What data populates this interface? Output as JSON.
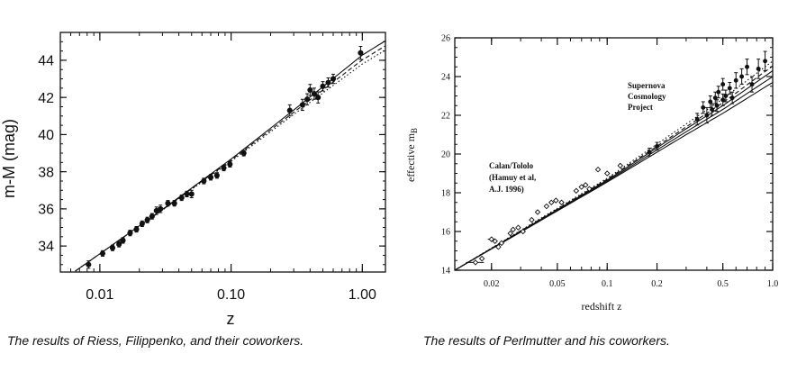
{
  "charts": {
    "riess": {
      "xlabel": "z",
      "ylabel": "m-M (mag)"
    },
    "perlmutter": {
      "xlabel": "redshift  z",
      "ylabel": "effective  m",
      "ylabel_sub": "B",
      "label_calan": [
        "Calan/Tololo",
        "(Hamuy et al,",
        "A.J. 1996)"
      ],
      "label_scp": [
        "Supernova",
        "Cosmology",
        "Project"
      ]
    }
  },
  "captions": {
    "riess": "The results of Riess, Filippenko, and their coworkers.",
    "perlmutter": "The results of Perlmutter and his coworkers."
  },
  "chart_data": [
    {
      "type": "scatter",
      "title": "",
      "xlabel": "z",
      "ylabel": "m-M (mag)",
      "xscale": "log",
      "xlim": [
        0.005,
        1.5
      ],
      "ylim": [
        32.6,
        45.5
      ],
      "xticks": [
        0.01,
        0.1,
        1.0
      ],
      "xtick_labels": [
        "0.01",
        "0.10",
        "1.00"
      ],
      "yticks": [
        34,
        36,
        38,
        40,
        42,
        44
      ],
      "ytick_labels": [
        "34",
        "36",
        "38",
        "40",
        "42",
        "44"
      ],
      "grid": false,
      "points": [
        {
          "x": 0.0082,
          "y": 33.0,
          "err": 0.2
        },
        {
          "x": 0.0105,
          "y": 33.6,
          "err": 0.15
        },
        {
          "x": 0.0125,
          "y": 33.9,
          "err": 0.15
        },
        {
          "x": 0.014,
          "y": 34.1,
          "err": 0.15
        },
        {
          "x": 0.015,
          "y": 34.3,
          "err": 0.15
        },
        {
          "x": 0.017,
          "y": 34.7,
          "err": 0.15
        },
        {
          "x": 0.019,
          "y": 34.9,
          "err": 0.15
        },
        {
          "x": 0.021,
          "y": 35.2,
          "err": 0.15
        },
        {
          "x": 0.023,
          "y": 35.4,
          "err": 0.15
        },
        {
          "x": 0.025,
          "y": 35.6,
          "err": 0.15
        },
        {
          "x": 0.027,
          "y": 35.9,
          "err": 0.2
        },
        {
          "x": 0.029,
          "y": 36.0,
          "err": 0.2
        },
        {
          "x": 0.033,
          "y": 36.3,
          "err": 0.15
        },
        {
          "x": 0.037,
          "y": 36.3,
          "err": 0.15
        },
        {
          "x": 0.042,
          "y": 36.6,
          "err": 0.15
        },
        {
          "x": 0.046,
          "y": 36.8,
          "err": 0.15
        },
        {
          "x": 0.05,
          "y": 36.8,
          "err": 0.2
        },
        {
          "x": 0.062,
          "y": 37.5,
          "err": 0.15
        },
        {
          "x": 0.07,
          "y": 37.7,
          "err": 0.15
        },
        {
          "x": 0.078,
          "y": 37.8,
          "err": 0.15
        },
        {
          "x": 0.088,
          "y": 38.2,
          "err": 0.15
        },
        {
          "x": 0.098,
          "y": 38.4,
          "err": 0.15
        },
        {
          "x": 0.125,
          "y": 39.0,
          "err": 0.15
        },
        {
          "x": 0.28,
          "y": 41.3,
          "err": 0.3
        },
        {
          "x": 0.35,
          "y": 41.6,
          "err": 0.3
        },
        {
          "x": 0.38,
          "y": 41.9,
          "err": 0.3
        },
        {
          "x": 0.4,
          "y": 42.4,
          "err": 0.3
        },
        {
          "x": 0.43,
          "y": 42.2,
          "err": 0.3
        },
        {
          "x": 0.46,
          "y": 42.0,
          "err": 0.3
        },
        {
          "x": 0.5,
          "y": 42.6,
          "err": 0.25
        },
        {
          "x": 0.55,
          "y": 42.8,
          "err": 0.25
        },
        {
          "x": 0.6,
          "y": 43.0,
          "err": 0.25
        },
        {
          "x": 0.97,
          "y": 44.4,
          "err": 0.35
        }
      ],
      "series": [
        {
          "style": "solid",
          "x": [
            0.0065,
            0.01,
            0.03,
            0.1,
            0.3,
            1.0,
            1.5
          ],
          "y": [
            32.65,
            33.58,
            35.97,
            38.68,
            41.32,
            44.28,
            45.05
          ]
        },
        {
          "style": "dashed",
          "x": [
            0.0065,
            0.01,
            0.03,
            0.1,
            0.3,
            1.0,
            1.5
          ],
          "y": [
            32.65,
            33.58,
            35.95,
            38.62,
            41.2,
            44.02,
            44.78
          ]
        },
        {
          "style": "dotted",
          "x": [
            0.0065,
            0.01,
            0.03,
            0.1,
            0.3,
            1.0,
            1.5
          ],
          "y": [
            32.65,
            33.58,
            35.93,
            38.56,
            41.08,
            43.8,
            44.55
          ]
        }
      ]
    },
    {
      "type": "scatter",
      "title": "",
      "xlabel": "redshift z",
      "ylabel": "effective m_B",
      "xscale": "log",
      "xlim": [
        0.012,
        1.0
      ],
      "ylim": [
        14,
        26
      ],
      "xticks": [
        0.02,
        0.05,
        0.1,
        0.2,
        0.5,
        1.0
      ],
      "xtick_labels": [
        "0.02",
        "0.05",
        "0.1",
        "0.2",
        "0.5",
        "1.0"
      ],
      "yticks": [
        14,
        16,
        18,
        20,
        22,
        24,
        26
      ],
      "ytick_labels": [
        "14",
        "16",
        "18",
        "20",
        "22",
        "24",
        "26"
      ],
      "grid": false,
      "points_calan": [
        {
          "x": 0.016,
          "y": 14.4,
          "xerr": 0.002
        },
        {
          "x": 0.0175,
          "y": 14.6
        },
        {
          "x": 0.02,
          "y": 15.6,
          "xerr": 0.001
        },
        {
          "x": 0.021,
          "y": 15.5
        },
        {
          "x": 0.022,
          "y": 15.2
        },
        {
          "x": 0.023,
          "y": 15.4
        },
        {
          "x": 0.026,
          "y": 15.9
        },
        {
          "x": 0.027,
          "y": 16.1
        },
        {
          "x": 0.029,
          "y": 16.2
        },
        {
          "x": 0.031,
          "y": 16.0
        },
        {
          "x": 0.035,
          "y": 16.6
        },
        {
          "x": 0.038,
          "y": 17.0
        },
        {
          "x": 0.043,
          "y": 17.3
        },
        {
          "x": 0.046,
          "y": 17.5
        },
        {
          "x": 0.049,
          "y": 17.6
        },
        {
          "x": 0.053,
          "y": 17.5
        },
        {
          "x": 0.065,
          "y": 18.1
        },
        {
          "x": 0.07,
          "y": 18.3
        },
        {
          "x": 0.074,
          "y": 18.4
        },
        {
          "x": 0.078,
          "y": 18.2
        },
        {
          "x": 0.088,
          "y": 19.2
        },
        {
          "x": 0.1,
          "y": 19.0
        },
        {
          "x": 0.12,
          "y": 19.4
        }
      ],
      "points_scp": [
        {
          "x": 0.18,
          "y": 20.1,
          "err": 0.2
        },
        {
          "x": 0.2,
          "y": 20.4,
          "err": 0.2
        },
        {
          "x": 0.35,
          "y": 21.8,
          "err": 0.3
        },
        {
          "x": 0.38,
          "y": 22.4,
          "err": 0.3
        },
        {
          "x": 0.4,
          "y": 22.0,
          "err": 0.4
        },
        {
          "x": 0.42,
          "y": 22.7,
          "err": 0.3
        },
        {
          "x": 0.43,
          "y": 22.3,
          "err": 0.3
        },
        {
          "x": 0.45,
          "y": 22.9,
          "err": 0.3
        },
        {
          "x": 0.46,
          "y": 22.5,
          "err": 0.3
        },
        {
          "x": 0.47,
          "y": 23.2,
          "err": 0.3
        },
        {
          "x": 0.5,
          "y": 22.8,
          "err": 0.3
        },
        {
          "x": 0.5,
          "y": 23.6,
          "err": 0.3
        },
        {
          "x": 0.52,
          "y": 23.0,
          "err": 0.3
        },
        {
          "x": 0.55,
          "y": 23.4,
          "err": 0.3
        },
        {
          "x": 0.57,
          "y": 22.9,
          "err": 0.3
        },
        {
          "x": 0.6,
          "y": 23.8,
          "err": 0.4
        },
        {
          "x": 0.65,
          "y": 24.0,
          "err": 0.4
        },
        {
          "x": 0.7,
          "y": 24.5,
          "err": 0.4
        },
        {
          "x": 0.75,
          "y": 23.6,
          "err": 0.4
        },
        {
          "x": 0.82,
          "y": 24.4,
          "err": 0.5
        },
        {
          "x": 0.9,
          "y": 24.8,
          "err": 0.5
        }
      ],
      "series": [
        {
          "style": "solid",
          "x": [
            0.012,
            0.1,
            0.3,
            0.5,
            1.0
          ],
          "y": [
            14.0,
            18.65,
            21.3,
            22.5,
            24.3
          ]
        },
        {
          "style": "solid",
          "x": [
            0.012,
            0.1,
            0.3,
            0.5,
            1.0
          ],
          "y": [
            14.0,
            18.6,
            21.15,
            22.3,
            24.0
          ]
        },
        {
          "style": "solid",
          "x": [
            0.012,
            0.1,
            0.3,
            0.5,
            1.0
          ],
          "y": [
            14.0,
            18.55,
            21.0,
            22.1,
            23.7
          ]
        },
        {
          "style": "dashed",
          "x": [
            0.012,
            0.1,
            0.3,
            0.5,
            1.0
          ],
          "y": [
            14.0,
            18.7,
            21.4,
            22.65,
            24.55
          ]
        },
        {
          "style": "dotted",
          "x": [
            0.012,
            0.1,
            0.3,
            0.5,
            1.0
          ],
          "y": [
            14.0,
            18.75,
            21.55,
            22.85,
            24.8
          ]
        }
      ]
    }
  ]
}
